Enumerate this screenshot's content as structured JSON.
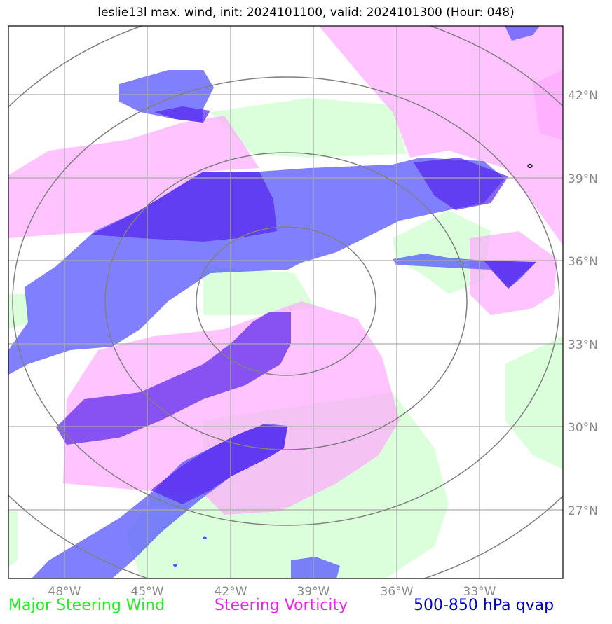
{
  "title": "leslie13l max. wind, init: 2024101100, valid: 2024101300 (Hour: 048)",
  "colors": {
    "green": "#ccffcc",
    "magenta": "#ffaaff",
    "blue": "#5555ff",
    "purple": "#5522ee",
    "grid": "#aaaaaa",
    "ring": "#808080"
  },
  "lat_labels": [
    "42°N",
    "39°N",
    "36°N",
    "33°N",
    "30°N",
    "27°N"
  ],
  "lon_labels": [
    "48°W",
    "45°W",
    "42°W",
    "39°W",
    "36°W",
    "33°W"
  ],
  "legend": {
    "green": "Major Steering Wind",
    "magenta": "Steering Vorticity",
    "blue": "500-850 hPa qvap"
  }
}
